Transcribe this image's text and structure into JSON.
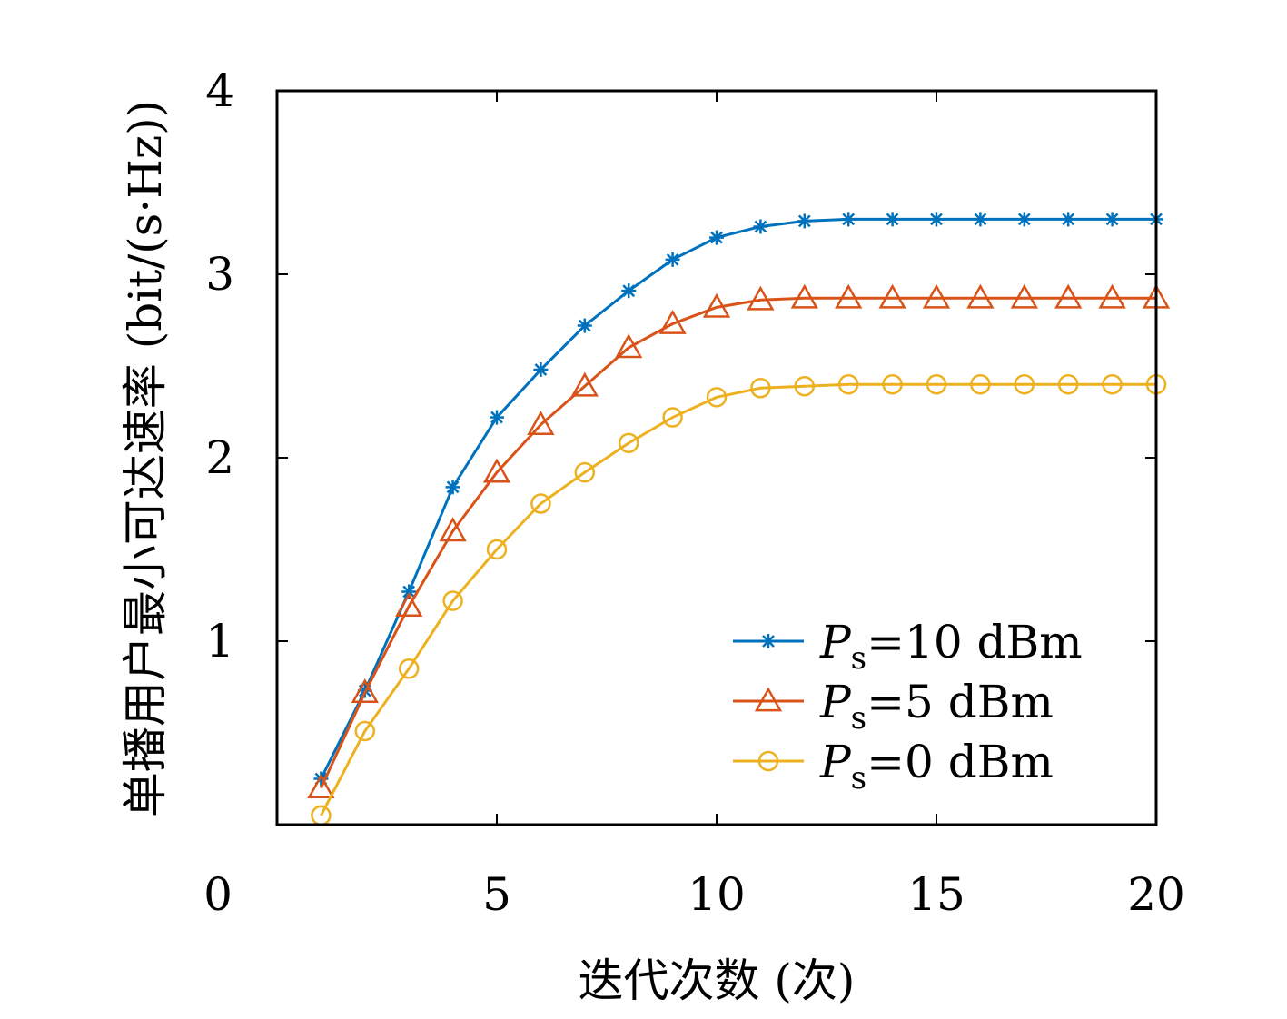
{
  "chart_data": {
    "type": "line",
    "title": "",
    "xlabel": "迭代次数 (次)",
    "ylabel": "单播用户最小可达速率 (bit/(s·Hz))",
    "xlim": [
      0,
      20
    ],
    "ylim": [
      0,
      4
    ],
    "x_ticks": [
      "0",
      "5",
      "10",
      "15",
      "20"
    ],
    "y_ticks": [
      "1",
      "2",
      "3",
      "4"
    ],
    "grid": false,
    "legend_position": "bottom-right",
    "x": [
      1,
      2,
      3,
      4,
      5,
      6,
      7,
      8,
      9,
      10,
      11,
      12,
      13,
      14,
      15,
      16,
      17,
      18,
      19,
      20
    ],
    "series": [
      {
        "name": "Ps=10 dBm",
        "legend": {
          "symbol": "P",
          "subscript": "s",
          "rest": "=10 dBm"
        },
        "color": "#0072BD",
        "marker": "asterisk",
        "values": [
          0.25,
          0.73,
          1.27,
          1.84,
          2.22,
          2.48,
          2.72,
          2.91,
          3.08,
          3.2,
          3.26,
          3.29,
          3.3,
          3.3,
          3.3,
          3.3,
          3.3,
          3.3,
          3.3,
          3.3
        ]
      },
      {
        "name": "Ps=5 dBm",
        "legend": {
          "symbol": "P",
          "subscript": "s",
          "rest": "=5 dBm"
        },
        "color": "#D95319",
        "marker": "triangle",
        "values": [
          0.2,
          0.72,
          1.19,
          1.6,
          1.92,
          2.18,
          2.39,
          2.6,
          2.73,
          2.82,
          2.86,
          2.87,
          2.87,
          2.87,
          2.87,
          2.87,
          2.87,
          2.87,
          2.87,
          2.87
        ]
      },
      {
        "name": "Ps=0 dBm",
        "legend": {
          "symbol": "P",
          "subscript": "s",
          "rest": "=0 dBm"
        },
        "color": "#EDB120",
        "marker": "circle",
        "values": [
          0.05,
          0.51,
          0.85,
          1.22,
          1.5,
          1.75,
          1.92,
          2.08,
          2.22,
          2.33,
          2.38,
          2.39,
          2.4,
          2.4,
          2.4,
          2.4,
          2.4,
          2.4,
          2.4,
          2.4
        ]
      }
    ]
  }
}
